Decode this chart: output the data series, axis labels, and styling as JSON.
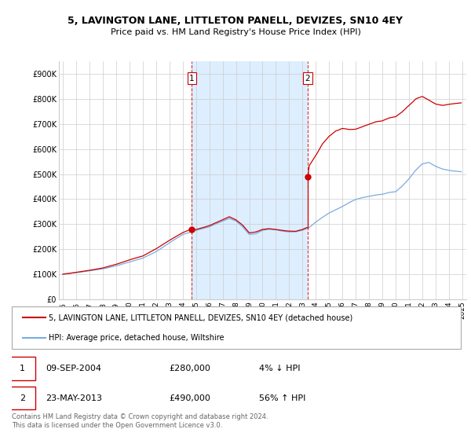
{
  "title": "5, LAVINGTON LANE, LITTLETON PANELL, DEVIZES, SN10 4EY",
  "subtitle": "Price paid vs. HM Land Registry's House Price Index (HPI)",
  "property_color": "#cc0000",
  "hpi_color": "#7aabe0",
  "plot_bg": "#ffffff",
  "highlight_color": "#ddeeff",
  "grid_color": "#cccccc",
  "ylim": [
    0,
    950000
  ],
  "yticks": [
    0,
    100000,
    200000,
    300000,
    400000,
    500000,
    600000,
    700000,
    800000,
    900000
  ],
  "ytick_labels": [
    "£0",
    "£100K",
    "£200K",
    "£300K",
    "£400K",
    "£500K",
    "£600K",
    "£700K",
    "£800K",
    "£900K"
  ],
  "xlim_start": 1994.7,
  "xlim_end": 2025.3,
  "sale1_x": 2004.69,
  "sale1_y": 280000,
  "sale1_label": "1",
  "sale1_date": "09-SEP-2004",
  "sale1_price": "£280,000",
  "sale1_hpi": "4% ↓ HPI",
  "sale2_x": 2013.39,
  "sale2_y": 490000,
  "sale2_label": "2",
  "sale2_date": "23-MAY-2013",
  "sale2_price": "£490,000",
  "sale2_hpi": "56% ↑ HPI",
  "legend_property": "5, LAVINGTON LANE, LITTLETON PANELL, DEVIZES, SN10 4EY (detached house)",
  "legend_hpi": "HPI: Average price, detached house, Wiltshire",
  "footer": "Contains HM Land Registry data © Crown copyright and database right 2024.\nThis data is licensed under the Open Government Licence v3.0."
}
